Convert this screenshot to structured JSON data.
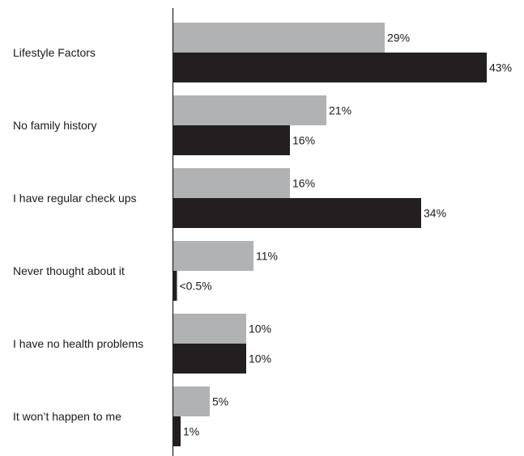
{
  "chart_data": {
    "type": "bar",
    "orientation": "horizontal",
    "title": "",
    "xlabel": "",
    "ylabel": "",
    "xlim": [
      0,
      45
    ],
    "grid": false,
    "legend": "none",
    "categories": [
      "Lifestyle Factors",
      "No family history",
      "I have regular check ups",
      "Never thought about it",
      "I have no health problems",
      "It won’t happen to me"
    ],
    "series": [
      {
        "color": "#b1b2b4",
        "values": [
          29,
          21,
          16,
          11,
          10,
          5
        ],
        "labels": [
          "29%",
          "21%",
          "16%",
          "11%",
          "10%",
          "5%"
        ]
      },
      {
        "color": "#231f20",
        "values": [
          43,
          16,
          34,
          0.5,
          10,
          1
        ],
        "labels": [
          "43%",
          "16%",
          "34%",
          "<0.5%",
          "10%",
          "1%"
        ]
      }
    ]
  }
}
